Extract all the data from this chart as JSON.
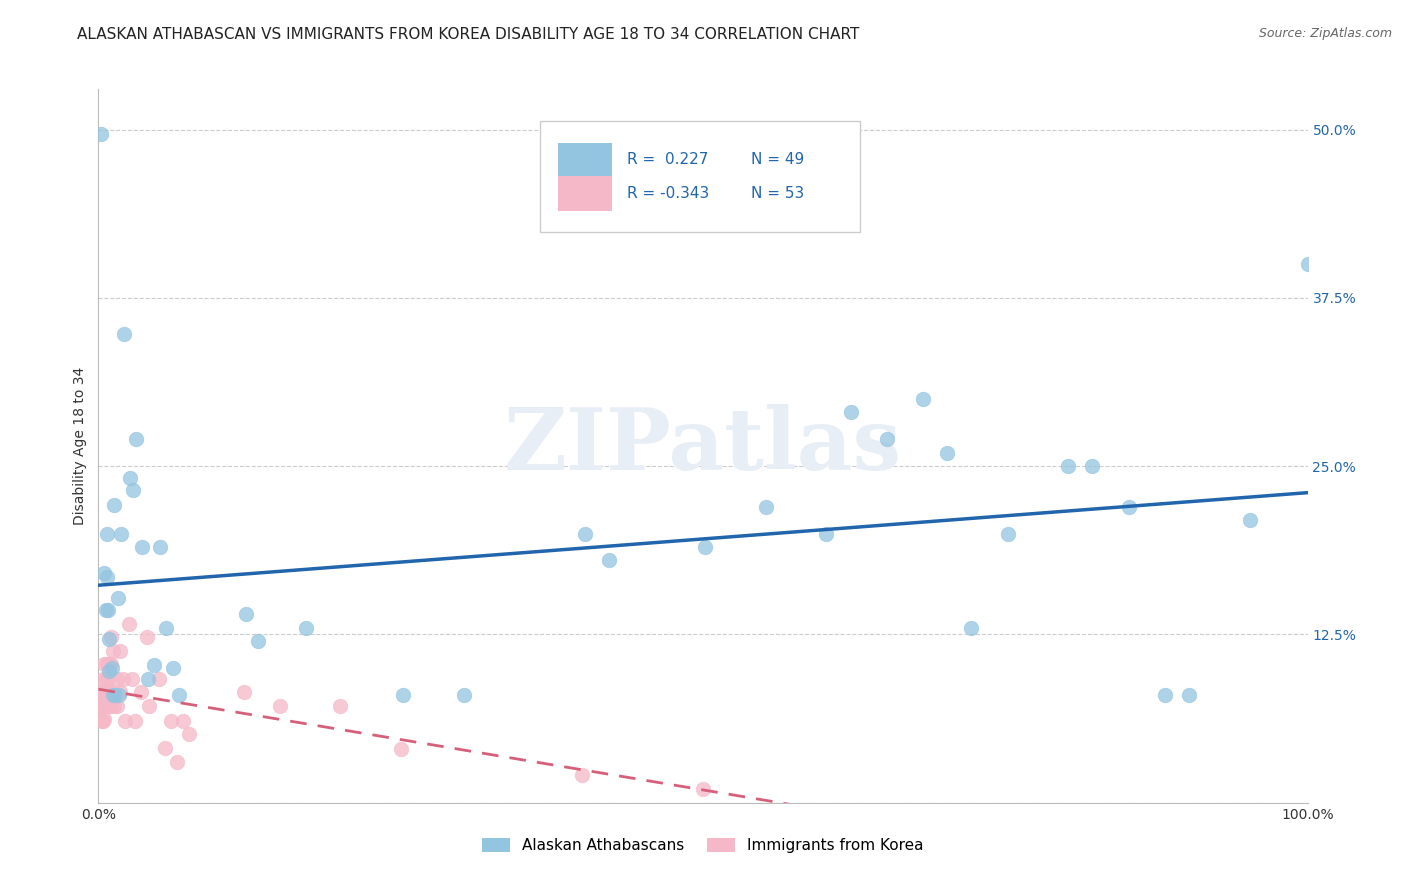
{
  "title": "ALASKAN ATHABASCAN VS IMMIGRANTS FROM KOREA DISABILITY AGE 18 TO 34 CORRELATION CHART",
  "source": "Source: ZipAtlas.com",
  "ylabel": "Disability Age 18 to 34",
  "watermark": "ZIPatlas",
  "blue_R": 0.227,
  "blue_N": 49,
  "pink_R": -0.343,
  "pink_N": 53,
  "blue_color": "#93c4e0",
  "pink_color": "#f5b8c8",
  "blue_line_color": "#2166ac",
  "pink_line_color": "#d6607a",
  "blue_scatter": [
    [
      0.002,
      0.497
    ],
    [
      0.005,
      0.171
    ],
    [
      0.006,
      0.143
    ],
    [
      0.007,
      0.2
    ],
    [
      0.007,
      0.168
    ],
    [
      0.008,
      0.143
    ],
    [
      0.009,
      0.122
    ],
    [
      0.009,
      0.098
    ],
    [
      0.011,
      0.1
    ],
    [
      0.012,
      0.08
    ],
    [
      0.013,
      0.221
    ],
    [
      0.014,
      0.08
    ],
    [
      0.016,
      0.152
    ],
    [
      0.017,
      0.08
    ],
    [
      0.019,
      0.2
    ],
    [
      0.021,
      0.348
    ],
    [
      0.026,
      0.241
    ],
    [
      0.029,
      0.232
    ],
    [
      0.031,
      0.27
    ],
    [
      0.036,
      0.19
    ],
    [
      0.041,
      0.092
    ],
    [
      0.046,
      0.102
    ],
    [
      0.051,
      0.19
    ],
    [
      0.056,
      0.13
    ],
    [
      0.062,
      0.1
    ],
    [
      0.067,
      0.08
    ],
    [
      0.122,
      0.14
    ],
    [
      0.132,
      0.12
    ],
    [
      0.172,
      0.13
    ],
    [
      0.252,
      0.08
    ],
    [
      0.302,
      0.08
    ],
    [
      0.402,
      0.2
    ],
    [
      0.422,
      0.18
    ],
    [
      0.502,
      0.19
    ],
    [
      0.552,
      0.22
    ],
    [
      0.602,
      0.2
    ],
    [
      0.622,
      0.29
    ],
    [
      0.652,
      0.27
    ],
    [
      0.682,
      0.3
    ],
    [
      0.702,
      0.26
    ],
    [
      0.722,
      0.13
    ],
    [
      0.752,
      0.2
    ],
    [
      0.802,
      0.25
    ],
    [
      0.822,
      0.25
    ],
    [
      0.852,
      0.22
    ],
    [
      0.882,
      0.08
    ],
    [
      0.902,
      0.08
    ],
    [
      0.952,
      0.21
    ],
    [
      1.0,
      0.4
    ]
  ],
  "pink_scatter": [
    [
      0.001,
      0.073
    ],
    [
      0.002,
      0.072
    ],
    [
      0.002,
      0.071
    ],
    [
      0.003,
      0.082
    ],
    [
      0.003,
      0.072
    ],
    [
      0.003,
      0.061
    ],
    [
      0.004,
      0.092
    ],
    [
      0.004,
      0.072
    ],
    [
      0.004,
      0.061
    ],
    [
      0.005,
      0.103
    ],
    [
      0.005,
      0.082
    ],
    [
      0.005,
      0.072
    ],
    [
      0.005,
      0.062
    ],
    [
      0.006,
      0.092
    ],
    [
      0.006,
      0.082
    ],
    [
      0.006,
      0.072
    ],
    [
      0.007,
      0.103
    ],
    [
      0.007,
      0.082
    ],
    [
      0.007,
      0.072
    ],
    [
      0.008,
      0.092
    ],
    [
      0.008,
      0.072
    ],
    [
      0.009,
      0.103
    ],
    [
      0.009,
      0.082
    ],
    [
      0.01,
      0.123
    ],
    [
      0.01,
      0.103
    ],
    [
      0.01,
      0.072
    ],
    [
      0.012,
      0.113
    ],
    [
      0.012,
      0.082
    ],
    [
      0.013,
      0.072
    ],
    [
      0.015,
      0.092
    ],
    [
      0.015,
      0.072
    ],
    [
      0.018,
      0.113
    ],
    [
      0.018,
      0.082
    ],
    [
      0.02,
      0.092
    ],
    [
      0.022,
      0.061
    ],
    [
      0.025,
      0.133
    ],
    [
      0.028,
      0.092
    ],
    [
      0.03,
      0.061
    ],
    [
      0.035,
      0.082
    ],
    [
      0.04,
      0.123
    ],
    [
      0.042,
      0.072
    ],
    [
      0.05,
      0.092
    ],
    [
      0.055,
      0.041
    ],
    [
      0.06,
      0.061
    ],
    [
      0.065,
      0.03
    ],
    [
      0.07,
      0.061
    ],
    [
      0.075,
      0.051
    ],
    [
      0.12,
      0.082
    ],
    [
      0.15,
      0.072
    ],
    [
      0.2,
      0.072
    ],
    [
      0.25,
      0.04
    ],
    [
      0.4,
      0.021
    ],
    [
      0.5,
      0.01
    ]
  ],
  "xlim": [
    0.0,
    1.0
  ],
  "ylim": [
    0.0,
    0.5
  ],
  "yticks": [
    0.0,
    0.125,
    0.25,
    0.375,
    0.5
  ],
  "yticklabels": [
    "",
    "12.5%",
    "25.0%",
    "37.5%",
    "50.0%"
  ],
  "xticks": [
    0.0,
    0.25,
    0.5,
    0.75,
    1.0
  ],
  "xticklabels": [
    "0.0%",
    "",
    "",
    "",
    "100.0%"
  ],
  "grid_color": "#cccccc",
  "bg_color": "#ffffff",
  "title_fontsize": 11,
  "axis_label_fontsize": 10,
  "tick_fontsize": 10,
  "legend_fontsize": 11,
  "blue_line_xlim": [
    0.0,
    1.0
  ],
  "pink_line_xlim": [
    0.0,
    0.75
  ]
}
